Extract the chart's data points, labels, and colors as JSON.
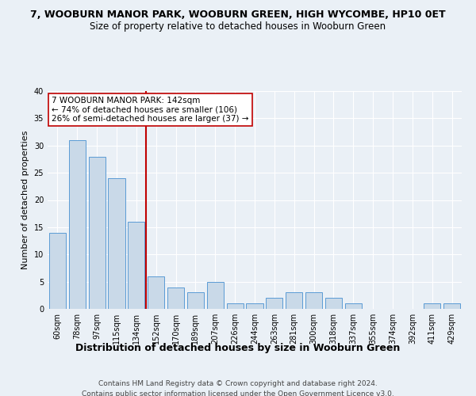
{
  "title": "7, WOOBURN MANOR PARK, WOOBURN GREEN, HIGH WYCOMBE, HP10 0ET",
  "subtitle": "Size of property relative to detached houses in Wooburn Green",
  "xlabel": "Distribution of detached houses by size in Wooburn Green",
  "ylabel": "Number of detached properties",
  "categories": [
    "60sqm",
    "78sqm",
    "97sqm",
    "115sqm",
    "134sqm",
    "152sqm",
    "170sqm",
    "189sqm",
    "207sqm",
    "226sqm",
    "244sqm",
    "263sqm",
    "281sqm",
    "300sqm",
    "318sqm",
    "337sqm",
    "355sqm",
    "374sqm",
    "392sqm",
    "411sqm",
    "429sqm"
  ],
  "values": [
    14,
    31,
    28,
    24,
    16,
    6,
    4,
    3,
    5,
    1,
    1,
    2,
    3,
    3,
    2,
    1,
    0,
    0,
    0,
    1,
    1
  ],
  "bar_color": "#c9d9e8",
  "bar_edge_color": "#5b9bd5",
  "vline_color": "#c00000",
  "ylim": [
    0,
    40
  ],
  "yticks": [
    0,
    5,
    10,
    15,
    20,
    25,
    30,
    35,
    40
  ],
  "annotation_text": "7 WOOBURN MANOR PARK: 142sqm\n← 74% of detached houses are smaller (106)\n26% of semi-detached houses are larger (37) →",
  "annotation_box_color": "#ffffff",
  "annotation_box_edge": "#c00000",
  "footer_line1": "Contains HM Land Registry data © Crown copyright and database right 2024.",
  "footer_line2": "Contains public sector information licensed under the Open Government Licence v3.0.",
  "bg_color": "#eaf0f6",
  "plot_bg_color": "#eaf0f6",
  "grid_color": "#ffffff",
  "title_fontsize": 9,
  "subtitle_fontsize": 8.5,
  "tick_fontsize": 7,
  "ylabel_fontsize": 8,
  "xlabel_fontsize": 9,
  "annotation_fontsize": 7.5,
  "footer_fontsize": 6.5
}
